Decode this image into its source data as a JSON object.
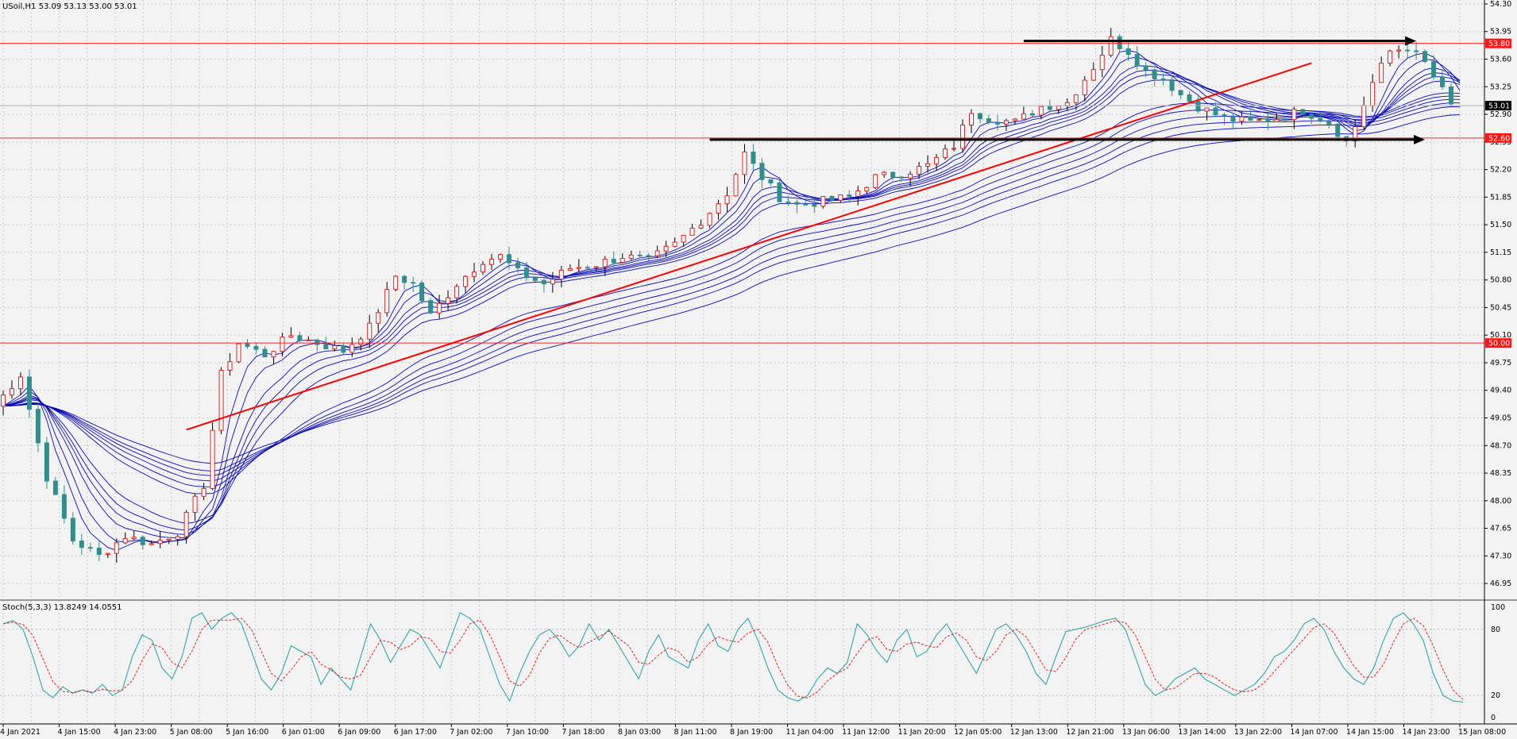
{
  "header": {
    "symbol_line": "USoil,H1  53.09 53.13 53.00 53.01",
    "stoch_line": "Stoch(5,3,3) 13.8249 14.0551"
  },
  "colors": {
    "background": "#f3f3f3",
    "grid": "#c7c7c7",
    "bull_candle": "#e02020",
    "bear_candle": "#2f8f8f",
    "ribbon": "#0a0ab8",
    "level_line": "#ff2020",
    "trend_line": "#ff0000",
    "arrow": "#000000",
    "stoch_main": "#2aa7a7",
    "stoch_signal": "#e02020",
    "badge_red": "#ff1414",
    "badge_black": "#000000"
  },
  "chart_data": [
    {
      "type": "candlestick",
      "title": "USoil,H1",
      "ohlc_last": {
        "open": 53.09,
        "high": 53.13,
        "low": 53.0,
        "close": 53.01
      },
      "ylim": [
        46.75,
        54.35
      ],
      "y_ticks": [
        "54.30",
        "53.95",
        "53.60",
        "53.25",
        "52.90",
        "52.55",
        "52.20",
        "51.85",
        "51.50",
        "51.15",
        "50.80",
        "50.45",
        "50.10",
        "49.75",
        "49.40",
        "49.05",
        "48.70",
        "48.35",
        "48.00",
        "47.65",
        "47.30",
        "46.95"
      ],
      "x_ticks": [
        "4 Jan 2021",
        "4 Jan 15:00",
        "4 Jan 23:00",
        "5 Jan 08:00",
        "5 Jan 16:00",
        "6 Jan 01:00",
        "6 Jan 09:00",
        "6 Jan 17:00",
        "7 Jan 02:00",
        "7 Jan 10:00",
        "7 Jan 18:00",
        "8 Jan 03:00",
        "8 Jan 11:00",
        "8 Jan 19:00",
        "11 Jan 04:00",
        "11 Jan 12:00",
        "11 Jan 20:00",
        "12 Jan 05:00",
        "12 Jan 13:00",
        "12 Jan 21:00",
        "13 Jan 06:00",
        "13 Jan 14:00",
        "13 Jan 22:00",
        "14 Jan 07:00",
        "14 Jan 15:00",
        "14 Jan 23:00",
        "15 Jan 08:00"
      ],
      "price_path": [
        [
          0,
          49.2
        ],
        [
          3,
          49.6
        ],
        [
          6,
          48.3
        ],
        [
          9,
          47.5
        ],
        [
          12,
          47.3
        ],
        [
          15,
          47.55
        ],
        [
          18,
          47.45
        ],
        [
          21,
          47.6
        ],
        [
          24,
          48.2
        ],
        [
          26,
          49.6
        ],
        [
          28,
          50.0
        ],
        [
          31,
          49.85
        ],
        [
          34,
          50.1
        ],
        [
          37,
          50.0
        ],
        [
          40,
          49.9
        ],
        [
          43,
          50.2
        ],
        [
          46,
          50.85
        ],
        [
          48,
          50.75
        ],
        [
          50,
          50.35
        ],
        [
          53,
          50.75
        ],
        [
          56,
          51.05
        ],
        [
          58,
          51.1
        ],
        [
          60,
          50.9
        ],
        [
          63,
          50.75
        ],
        [
          66,
          50.95
        ],
        [
          69,
          51.0
        ],
        [
          72,
          51.1
        ],
        [
          75,
          51.05
        ],
        [
          78,
          51.25
        ],
        [
          81,
          51.55
        ],
        [
          84,
          51.9
        ],
        [
          86,
          52.4
        ],
        [
          88,
          52.1
        ],
        [
          90,
          51.85
        ],
        [
          92,
          51.75
        ],
        [
          95,
          51.8
        ],
        [
          98,
          51.85
        ],
        [
          101,
          52.1
        ],
        [
          104,
          52.15
        ],
        [
          107,
          52.25
        ],
        [
          110,
          52.5
        ],
        [
          112,
          52.95
        ],
        [
          114,
          52.85
        ],
        [
          117,
          52.8
        ],
        [
          120,
          53.0
        ],
        [
          123,
          53.05
        ],
        [
          126,
          53.5
        ],
        [
          128,
          53.85
        ],
        [
          130,
          53.7
        ],
        [
          132,
          53.45
        ],
        [
          134,
          53.35
        ],
        [
          136,
          53.15
        ],
        [
          138,
          53.0
        ],
        [
          141,
          52.85
        ],
        [
          144,
          52.8
        ],
        [
          147,
          52.85
        ],
        [
          150,
          52.95
        ],
        [
          153,
          52.8
        ],
        [
          155,
          52.55
        ],
        [
          156,
          52.75
        ],
        [
          158,
          53.3
        ],
        [
          160,
          53.7
        ],
        [
          162,
          53.75
        ],
        [
          164,
          53.55
        ],
        [
          166,
          53.2
        ],
        [
          167,
          53.01
        ]
      ],
      "candles_bars": 167,
      "moving_average_ribbon_count": 12,
      "horizontal_levels": [
        {
          "price": 53.8,
          "label": "53.80",
          "badge": "red"
        },
        {
          "price": 53.01,
          "label": "53.01",
          "badge": "black",
          "note": "current"
        },
        {
          "price": 52.6,
          "label": "52.60",
          "badge": "red"
        },
        {
          "price": 50.0,
          "label": "50.00",
          "badge": "red"
        }
      ],
      "trend_line": {
        "from": [
          21,
          48.9
        ],
        "to": [
          150,
          53.55
        ]
      },
      "arrows": [
        {
          "from": [
            117,
            53.83
          ],
          "to": [
            162,
            53.83
          ]
        },
        {
          "from": [
            81,
            52.58
          ],
          "to": [
            163,
            52.58
          ]
        }
      ]
    },
    {
      "type": "line",
      "title": "Stoch(5,3,3)",
      "ylim": [
        0,
        100
      ],
      "y_ticks": [
        "100",
        "80",
        "20",
        "0"
      ],
      "levels": [
        80,
        20
      ],
      "series": [
        {
          "name": "main",
          "last": 13.8249,
          "values": [
            85,
            88,
            80,
            55,
            25,
            18,
            28,
            22,
            25,
            22,
            30,
            20,
            25,
            55,
            75,
            70,
            45,
            35,
            55,
            90,
            95,
            80,
            90,
            95,
            85,
            60,
            35,
            25,
            40,
            65,
            60,
            55,
            30,
            45,
            35,
            25,
            55,
            85,
            70,
            50,
            65,
            80,
            75,
            60,
            45,
            70,
            95,
            90,
            80,
            55,
            30,
            15,
            40,
            60,
            75,
            80,
            70,
            55,
            65,
            85,
            70,
            80,
            65,
            50,
            35,
            60,
            75,
            55,
            50,
            45,
            70,
            85,
            65,
            60,
            80,
            90,
            70,
            45,
            25,
            18,
            15,
            20,
            35,
            45,
            40,
            50,
            85,
            75,
            60,
            50,
            70,
            80,
            55,
            60,
            75,
            85,
            70,
            55,
            40,
            60,
            80,
            85,
            75,
            60,
            40,
            30,
            55,
            78,
            80,
            82,
            85,
            88,
            90,
            80,
            55,
            30,
            20,
            25,
            35,
            40,
            45,
            35,
            30,
            25,
            20,
            25,
            30,
            40,
            55,
            60,
            70,
            85,
            90,
            80,
            60,
            45,
            35,
            30,
            45,
            70,
            90,
            95,
            85,
            70,
            40,
            20,
            15,
            14
          ]
        },
        {
          "name": "signal",
          "last": 14.0551
        }
      ]
    }
  ]
}
